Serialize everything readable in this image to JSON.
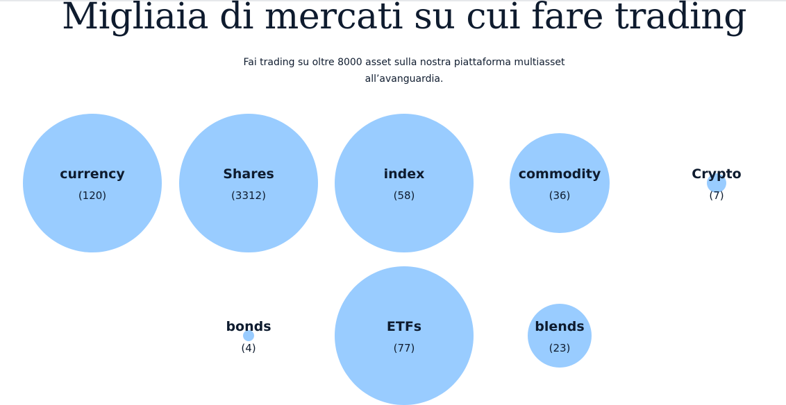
{
  "header": {
    "title": "Migliaia di mercati su cui fare trading",
    "subtitle": [
      "Fai trading su oltre 8000 asset sulla nostra piattaforma multiasset",
      "all’avanguardia."
    ]
  },
  "markets": [
    {
      "name": "currency",
      "count": "(120)"
    },
    {
      "name": "Shares",
      "count": "(3312)"
    },
    {
      "name": "index",
      "count": "(58)"
    },
    {
      "name": "commodity",
      "count": "(36)"
    },
    {
      "name": "Crypto",
      "count": "(7)"
    },
    {
      "name": "bonds",
      "count": "(4)"
    },
    {
      "name": "ETFs",
      "count": "(77)"
    },
    {
      "name": "blends",
      "count": "(23)"
    }
  ]
}
